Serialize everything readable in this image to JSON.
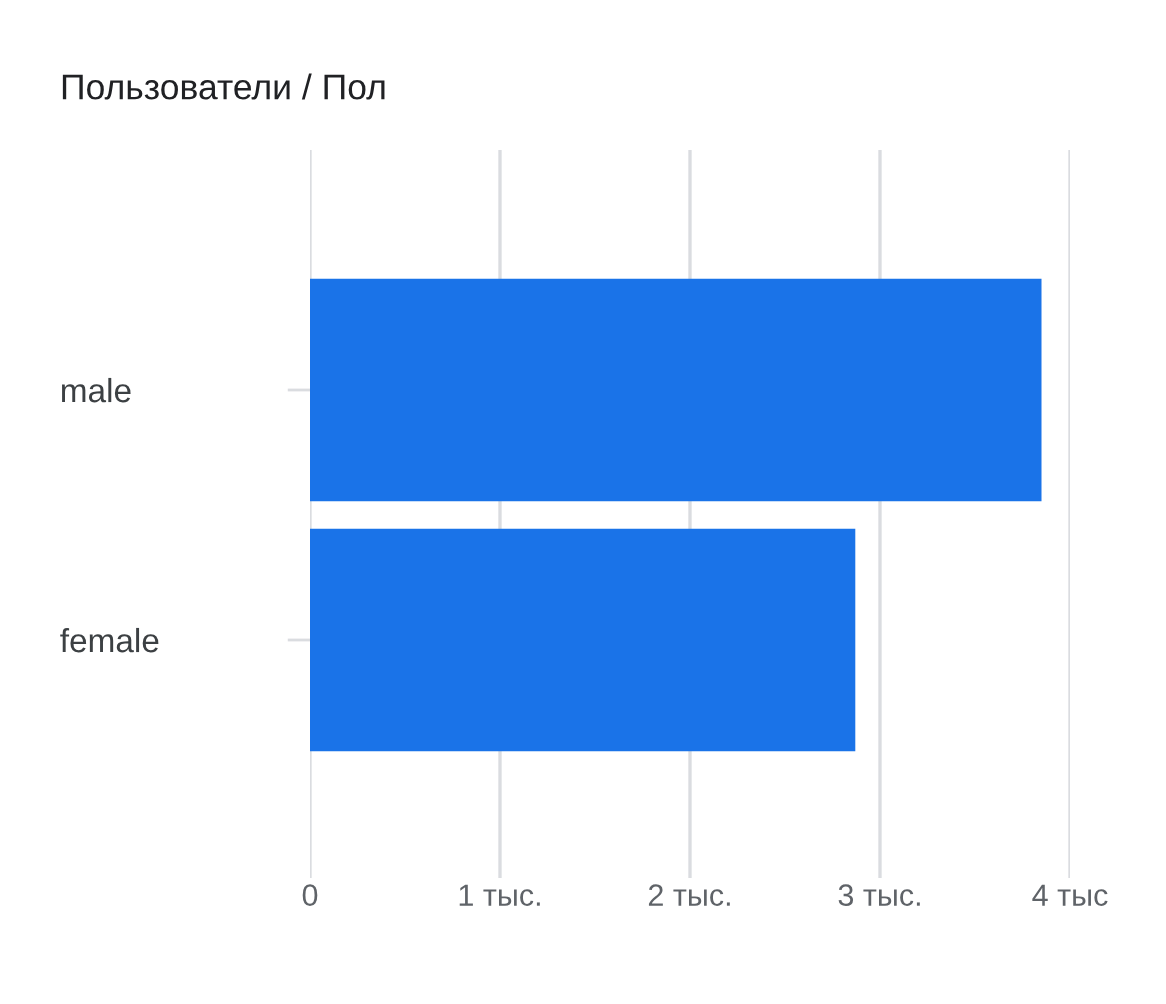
{
  "chart_data": {
    "type": "bar",
    "title": "Пользователи / Пол",
    "orientation": "horizontal",
    "categories": [
      "male",
      "female"
    ],
    "values": [
      3.85,
      2.87
    ],
    "color": "#1a73e8",
    "xlim": [
      0,
      4
    ],
    "xticks": [
      0,
      {
        "value": 1,
        "label": "1 тыс."
      },
      {
        "value": 2,
        "label": "2 тыс."
      },
      {
        "value": 3,
        "label": "3 тыс."
      },
      {
        "value": 4,
        "label": "4 тыс"
      }
    ],
    "grid": "x",
    "legend": false
  }
}
